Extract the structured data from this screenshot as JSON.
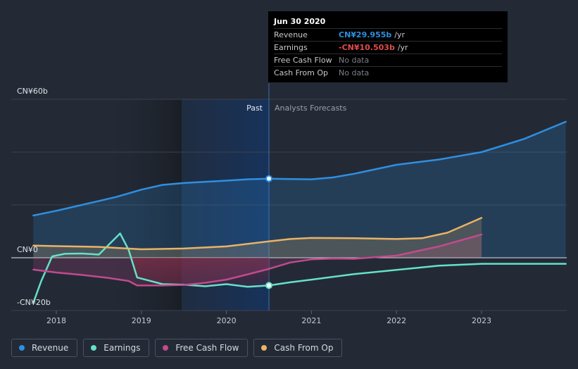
{
  "chart_data": {
    "type": "line",
    "x_ticks": [
      2018,
      2019,
      2020,
      2021,
      2022,
      2023
    ],
    "x_range": [
      2017.5,
      2023.99
    ],
    "ylim": [
      -20,
      60
    ],
    "y_ticks": [
      {
        "value": 60,
        "label": "CN¥60b"
      },
      {
        "value": 0,
        "label": "CN¥0"
      },
      {
        "value": -20,
        "label": "-CN¥20b"
      }
    ],
    "divider_x": 2020.5,
    "past_label": "Past",
    "forecast_label": "Analysts Forecasts",
    "series": [
      {
        "name": "Revenue",
        "color": "#2f8fe0",
        "fill": true,
        "points": [
          [
            2017.73,
            16
          ],
          [
            2018,
            17.8
          ],
          [
            2018.3,
            20
          ],
          [
            2018.7,
            23
          ],
          [
            2019,
            25.8
          ],
          [
            2019.25,
            27.6
          ],
          [
            2019.5,
            28.3
          ],
          [
            2020,
            29.2
          ],
          [
            2020.25,
            29.7
          ],
          [
            2020.5,
            29.955
          ],
          [
            2020.75,
            29.8
          ],
          [
            2021,
            29.7
          ],
          [
            2021.25,
            30.4
          ],
          [
            2021.5,
            31.8
          ],
          [
            2022,
            35.2
          ],
          [
            2022.5,
            37.2
          ],
          [
            2023,
            40
          ],
          [
            2023.5,
            45
          ],
          [
            2023.99,
            51.5
          ]
        ]
      },
      {
        "name": "Earnings",
        "color": "#66e0c8",
        "fill": false,
        "points": [
          [
            2017.73,
            -17
          ],
          [
            2017.82,
            -9
          ],
          [
            2017.95,
            0.5
          ],
          [
            2018.1,
            1.5
          ],
          [
            2018.3,
            1.6
          ],
          [
            2018.5,
            1.2
          ],
          [
            2018.75,
            9.2
          ],
          [
            2018.85,
            3
          ],
          [
            2018.95,
            -7.5
          ],
          [
            2019.25,
            -10
          ],
          [
            2019.5,
            -10.2
          ],
          [
            2019.75,
            -10.8
          ],
          [
            2020,
            -10
          ],
          [
            2020.25,
            -11
          ],
          [
            2020.5,
            -10.503
          ],
          [
            2020.75,
            -9.3
          ],
          [
            2021,
            -8.3
          ],
          [
            2021.5,
            -6.2
          ],
          [
            2022,
            -4.6
          ],
          [
            2022.5,
            -3
          ],
          [
            2023,
            -2.3
          ],
          [
            2023.99,
            -2.3
          ]
        ]
      },
      {
        "name": "Free Cash Flow",
        "color": "#c24a8d",
        "fill": true,
        "points": [
          [
            2017.73,
            -4.5
          ],
          [
            2018,
            -5.6
          ],
          [
            2018.3,
            -6.5
          ],
          [
            2018.6,
            -7.6
          ],
          [
            2018.85,
            -8.8
          ],
          [
            2018.95,
            -10.5
          ],
          [
            2019.25,
            -10.5
          ],
          [
            2019.5,
            -10.3
          ],
          [
            2019.75,
            -9.5
          ],
          [
            2020,
            -8.3
          ],
          [
            2020.25,
            -6.3
          ],
          [
            2020.5,
            -4.2
          ],
          [
            2020.75,
            -1.8
          ],
          [
            2021,
            -0.6
          ],
          [
            2021.25,
            -0.3
          ],
          [
            2021.5,
            -0.4
          ],
          [
            2022,
            0.8
          ],
          [
            2022.5,
            4.3
          ],
          [
            2023,
            8.8
          ]
        ]
      },
      {
        "name": "Cash From Op",
        "color": "#e9b365",
        "fill": true,
        "points": [
          [
            2017.73,
            4.6
          ],
          [
            2018,
            4.4
          ],
          [
            2018.5,
            4.1
          ],
          [
            2019,
            3.2
          ],
          [
            2019.5,
            3.5
          ],
          [
            2020,
            4.3
          ],
          [
            2020.5,
            6.2
          ],
          [
            2020.75,
            7.1
          ],
          [
            2021,
            7.5
          ],
          [
            2021.5,
            7.4
          ],
          [
            2022,
            7.1
          ],
          [
            2022.3,
            7.4
          ],
          [
            2022.6,
            9.5
          ],
          [
            2023,
            15.1
          ]
        ]
      }
    ]
  },
  "tooltip": {
    "date": "Jun 30 2020",
    "rows": [
      {
        "label": "Revenue",
        "value": "CN¥29.955b",
        "unit": "/yr",
        "color": "#2f8fe0"
      },
      {
        "label": "Earnings",
        "value": "-CN¥10.503b",
        "unit": "/yr",
        "color": "#e04c4c"
      },
      {
        "label": "Free Cash Flow",
        "value": "No data"
      },
      {
        "label": "Cash From Op",
        "value": "No data"
      }
    ]
  },
  "legend": [
    {
      "label": "Revenue",
      "color": "#2f8fe0"
    },
    {
      "label": "Earnings",
      "color": "#66e0c8"
    },
    {
      "label": "Free Cash Flow",
      "color": "#c24a8d"
    },
    {
      "label": "Cash From Op",
      "color": "#e9b365"
    }
  ]
}
